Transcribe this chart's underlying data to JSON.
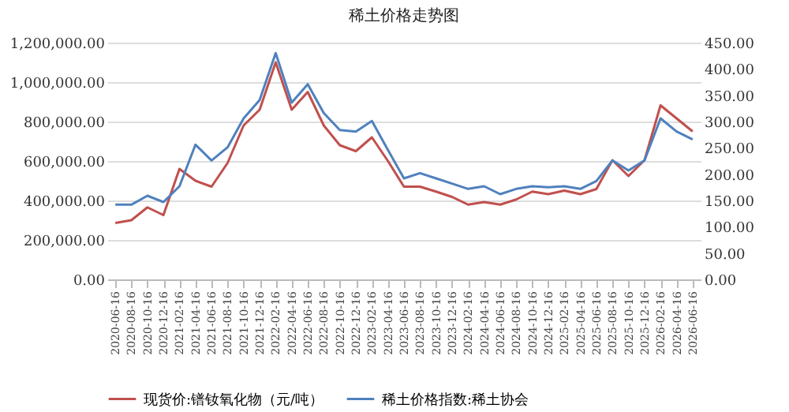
{
  "chart_data": {
    "type": "line",
    "title": "稀土价格走势图",
    "categories": [
      "2020-06-16",
      "2020-08-16",
      "2020-10-16",
      "2020-12-16",
      "2021-02-16",
      "2021-04-16",
      "2021-06-16",
      "2021-08-16",
      "2021-10-16",
      "2021-12-16",
      "2022-02-16",
      "2022-04-16",
      "2022-06-16",
      "2022-08-16",
      "2022-10-16",
      "2022-12-16",
      "2023-02-16",
      "2023-04-16",
      "2023-06-16",
      "2023-08-16",
      "2023-10-16",
      "2023-12-16",
      "2024-02-16",
      "2024-04-16",
      "2024-06-16",
      "2024-08-16",
      "2024-10-16",
      "2024-12-16",
      "2025-02-16",
      "2025-04-16",
      "2025-06-16",
      "2025-08-16",
      "2025-10-16",
      "2025-12-16",
      "2026-02-16",
      "2026-04-16",
      "2026-06-16"
    ],
    "series": [
      {
        "name": "现货价:镨钕氧化物（元/吨）",
        "color": "#c0504d",
        "values": [
          286000,
          300000,
          365000,
          326000,
          560000,
          500000,
          470000,
          590000,
          780000,
          860000,
          1100000,
          860000,
          950000,
          780000,
          680000,
          650000,
          720000,
          600000,
          470000,
          470000,
          445000,
          418000,
          379000,
          392000,
          379000,
          405000,
          445000,
          432000,
          450000,
          432000,
          458000,
          604000,
          524000,
          604000,
          882000,
          816000,
          750000
        ]
      },
      {
        "name": "稀土价格指数:稀土协会",
        "color": "#4f81bd",
        "axis": "y2",
        "values": [
          142,
          142,
          159,
          147,
          177,
          256,
          226,
          251,
          306,
          341,
          430,
          336,
          371,
          316,
          284,
          281,
          301,
          246,
          192,
          202,
          192,
          182,
          172,
          177,
          162,
          172,
          177,
          175,
          177,
          172,
          187,
          226,
          207,
          226,
          306,
          281,
          266
        ]
      }
    ],
    "ylim": [
      0,
      1200000
    ],
    "yticks": [
      {
        "value": 0,
        "label": "0.00"
      },
      {
        "value": 200000,
        "label": "200,000.00"
      },
      {
        "value": 400000,
        "label": "400,000.00"
      },
      {
        "value": 600000,
        "label": "600,000.00"
      },
      {
        "value": 800000,
        "label": "800,000.00"
      },
      {
        "value": 1000000,
        "label": "1,000,000.00"
      },
      {
        "value": 1200000,
        "label": "1,200,000.00"
      }
    ],
    "y2lim": [
      0,
      450
    ],
    "y2ticks": [
      {
        "value": 0,
        "label": "0.00"
      },
      {
        "value": 50,
        "label": "50.00"
      },
      {
        "value": 100,
        "label": "100.00"
      },
      {
        "value": 150,
        "label": "150.00"
      },
      {
        "value": 200,
        "label": "200.00"
      },
      {
        "value": 250,
        "label": "250.00"
      },
      {
        "value": 300,
        "label": "300.00"
      },
      {
        "value": 350,
        "label": "350.00"
      },
      {
        "value": 400,
        "label": "400.00"
      },
      {
        "value": 450,
        "label": "450.00"
      }
    ],
    "grid": "y",
    "legend": "bottom",
    "marker": "none",
    "line_style": "solid"
  }
}
